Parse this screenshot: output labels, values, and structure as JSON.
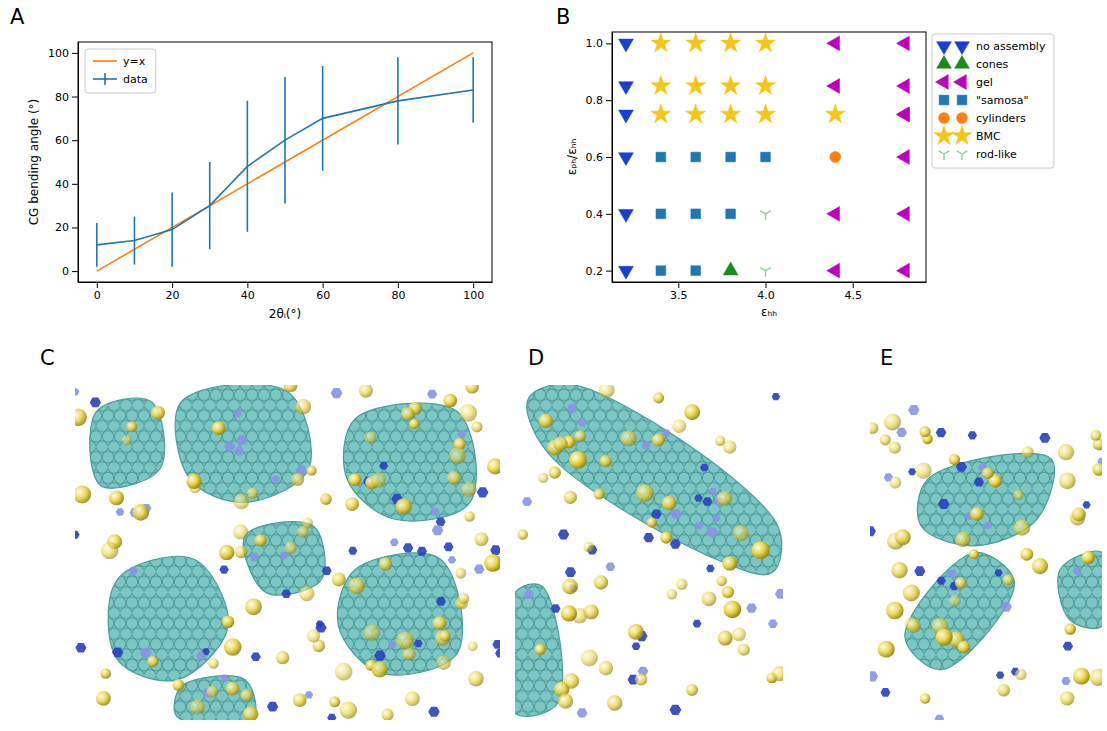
{
  "chart_data": [
    {
      "type": "line",
      "panel": "A",
      "x_label": "2θᵢ(°)",
      "y_label": "CG bending angle (°)",
      "xlim": [
        -5,
        105
      ],
      "ylim": [
        -5,
        105
      ],
      "xticks": [
        0,
        20,
        40,
        60,
        80,
        100
      ],
      "yticks": [
        0,
        20,
        40,
        60,
        80,
        100
      ],
      "legend": "upper left",
      "series": [
        {
          "name": "y=x",
          "color": "#ff7f0e",
          "x": [
            0,
            100
          ],
          "values": [
            0,
            100
          ]
        },
        {
          "name": "data",
          "color": "#1f77b4",
          "x": [
            0,
            10,
            20,
            30,
            40,
            50,
            60,
            80,
            100
          ],
          "values": [
            12,
            14,
            19,
            30,
            48,
            60,
            70,
            78,
            83
          ],
          "errors": [
            10,
            11,
            17,
            20,
            30,
            29,
            24,
            20,
            15
          ]
        }
      ]
    },
    {
      "type": "scatter",
      "panel": "B",
      "x_label": "εₕₕ",
      "y_label": "εₚₕ/εₕₕ",
      "xlim": [
        3.12,
        4.92
      ],
      "ylim": [
        0.16,
        1.04
      ],
      "xticks": [
        3.5,
        {
          "value": 4,
          "label": "4.0"
        },
        4.5
      ],
      "yticks": [
        0.2,
        0.4,
        0.6,
        0.8,
        {
          "value": 1,
          "label": "1.0"
        }
      ],
      "legend": "outside right",
      "series": [
        {
          "name": "no assembly",
          "color": "#1a3fd0",
          "marker": "triangle_down",
          "x": [
            3.2,
            3.2,
            3.2,
            3.2,
            3.2,
            3.2
          ],
          "values": [
            0.2,
            0.4,
            0.6,
            0.75,
            0.85,
            1.0
          ]
        },
        {
          "name": "cones",
          "color": "#1a8c1a",
          "marker": "triangle_up",
          "x": [
            3.8
          ],
          "values": [
            0.2
          ]
        },
        {
          "name": "gel",
          "color": "#bf00bf",
          "marker": "triangle_left",
          "x": [
            4.4,
            4.8,
            4.4,
            4.8,
            4.8,
            4.8,
            4.4,
            4.8,
            4.4,
            4.8,
            4.8
          ],
          "values": [
            0.2,
            0.2,
            0.4,
            0.4,
            0.6,
            0.75,
            0.85,
            0.85,
            1.0,
            1.0,
            0.75
          ]
        },
        {
          "name": "\"samosa\"",
          "color": "#1f77b4",
          "marker": "square",
          "x": [
            3.4,
            3.6,
            3.4,
            3.6,
            3.8,
            3.4,
            3.6,
            3.8,
            4.0
          ],
          "values": [
            0.2,
            0.2,
            0.4,
            0.4,
            0.4,
            0.6,
            0.6,
            0.6,
            0.6
          ]
        },
        {
          "name": "cylinders",
          "color": "#ff7f0e",
          "marker": "circle",
          "x": [
            4.4
          ],
          "values": [
            0.6
          ]
        },
        {
          "name": "BMC",
          "color": "#f5c518",
          "marker": "star",
          "x": [
            3.4,
            3.6,
            3.8,
            4.0,
            4.4,
            3.4,
            3.6,
            3.8,
            4.0,
            3.4,
            3.6,
            3.8,
            4.0
          ],
          "values": [
            0.75,
            0.75,
            0.75,
            0.75,
            0.75,
            0.85,
            0.85,
            0.85,
            0.85,
            1.0,
            1.0,
            1.0,
            1.0
          ]
        },
        {
          "name": "rod-like",
          "color": "#8fcf9a",
          "marker": "tri_down",
          "x": [
            4.0,
            4.0
          ],
          "values": [
            0.2,
            0.4
          ]
        }
      ]
    }
  ],
  "images": [
    {
      "panel": "C"
    },
    {
      "panel": "D"
    },
    {
      "panel": "E"
    }
  ]
}
